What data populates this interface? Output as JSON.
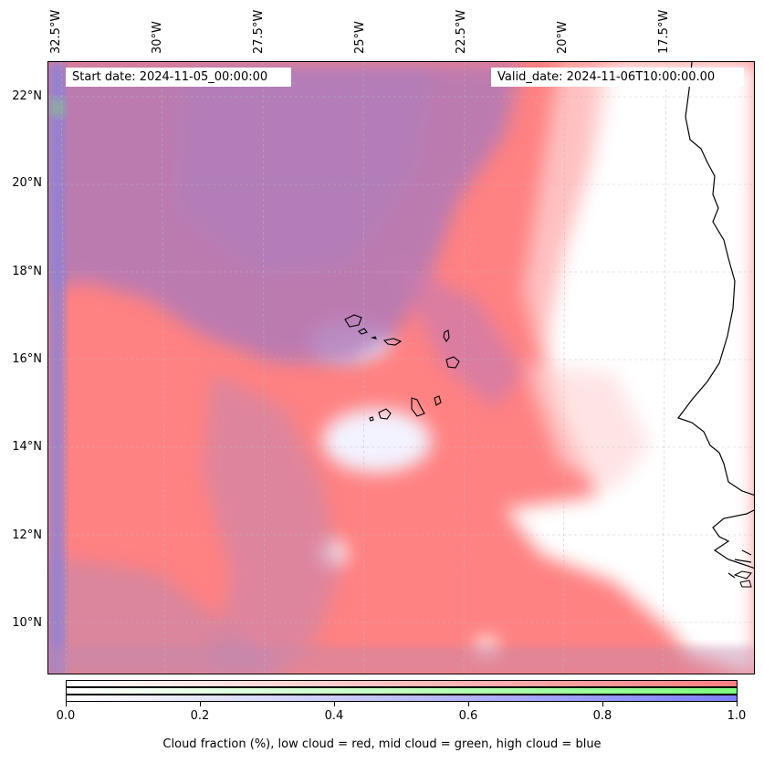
{
  "map": {
    "start_date": "Start date: 2024-11-05_00:00:00",
    "valid_date": "Valid_date: 2024-11-06T10:00:00.00",
    "lon_labels": [
      "32.5°W",
      "30°W",
      "27.5°W",
      "25°W",
      "22.5°W",
      "20°W",
      "17.5°W"
    ],
    "lat_labels": [
      "22°N",
      "20°N",
      "18°N",
      "16°N",
      "14°N",
      "12°N",
      "10°N"
    ],
    "layers": [
      "low cloud",
      "mid cloud",
      "high cloud"
    ],
    "colors": {
      "low": "#ff7f7f",
      "mid": "#7fff7f",
      "high": "#7f7fff"
    }
  },
  "colorbar": {
    "ticks": [
      "0.0",
      "0.2",
      "0.4",
      "0.6",
      "0.8",
      "1.0"
    ],
    "label": "Cloud fraction (%), low cloud = red, mid cloud = green, high cloud = blue"
  }
}
